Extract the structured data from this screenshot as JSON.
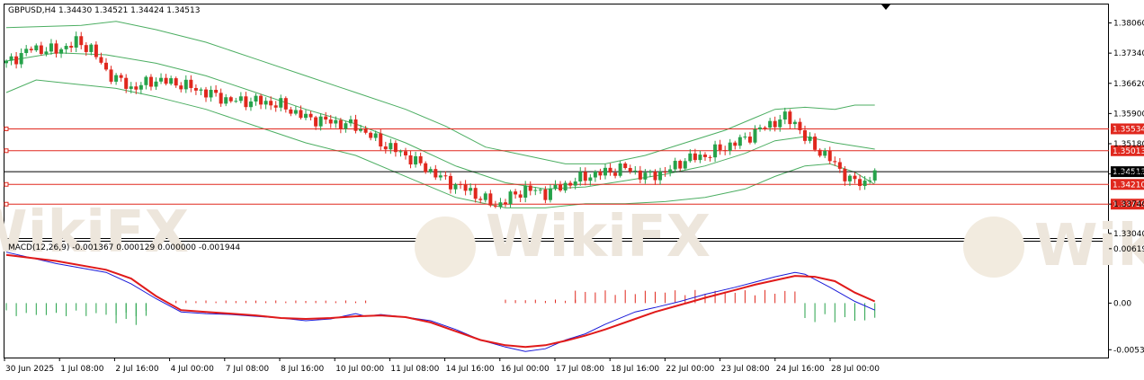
{
  "header": {
    "main_title": "GBPUSD,H4  1.34430 1.34521 1.34424 1.34513",
    "macd_title": "MACD(12,26,9) -0.001367 0.000129 0.000000 -0.001944"
  },
  "watermark": {
    "text": "WikiFX"
  },
  "colors": {
    "bull": "#26a24a",
    "bear": "#e0281e",
    "band": "#4cae62",
    "level": "#e0281e",
    "macd_line": "#1a1ad8",
    "signal_line": "#e01a1a",
    "axis": "#000000"
  },
  "chart_data": {
    "type": "candlestick",
    "symbol": "GBPUSD",
    "timeframe": "H4",
    "ylim": [
      1.3293,
      1.385
    ],
    "price_ticks": [
      "1.38060",
      "1.37340",
      "1.36620",
      "1.35900",
      "1.35180",
      "1.34460",
      "1.33740",
      "1.33040"
    ],
    "x_ticks": [
      "30 Jun 2025",
      "1 Jul 08:00",
      "2 Jul 16:00",
      "4 Jul 00:00",
      "7 Jul 08:00",
      "8 Jul 16:00",
      "10 Jul 00:00",
      "11 Jul 08:00",
      "14 Jul 16:00",
      "16 Jul 00:00",
      "17 Jul 08:00",
      "18 Jul 16:00",
      "22 Jul 00:00",
      "23 Jul 08:00",
      "24 Jul 16:00",
      "28 Jul 00:00"
    ],
    "current_price": "1.34513",
    "levels": [
      "1.35534",
      "1.35013",
      "1.34210",
      "1.33739"
    ],
    "close_path": [
      [
        0,
        1.371
      ],
      [
        5,
        1.3745
      ],
      [
        10,
        1.374
      ],
      [
        14,
        1.376
      ],
      [
        17,
        1.3745
      ],
      [
        20,
        1.369
      ],
      [
        25,
        1.365
      ],
      [
        30,
        1.367
      ],
      [
        35,
        1.366
      ],
      [
        40,
        1.364
      ],
      [
        45,
        1.362
      ],
      [
        50,
        1.362
      ],
      [
        55,
        1.361
      ],
      [
        60,
        1.358
      ],
      [
        65,
        1.357
      ],
      [
        70,
        1.356
      ],
      [
        75,
        1.352
      ],
      [
        80,
        1.349
      ],
      [
        84,
        1.346
      ],
      [
        88,
        1.343
      ],
      [
        92,
        1.341
      ],
      [
        95,
        1.339
      ],
      [
        98,
        1.337
      ],
      [
        101,
        1.339
      ],
      [
        104,
        1.341
      ],
      [
        108,
        1.34
      ],
      [
        112,
        1.342
      ],
      [
        116,
        1.344
      ],
      [
        120,
        1.345
      ],
      [
        124,
        1.346
      ],
      [
        128,
        1.344
      ],
      [
        132,
        1.345
      ],
      [
        136,
        1.348
      ],
      [
        140,
        1.349
      ],
      [
        144,
        1.351
      ],
      [
        148,
        1.353
      ],
      [
        152,
        1.356
      ],
      [
        156,
        1.358
      ],
      [
        158,
        1.357
      ],
      [
        160,
        1.353
      ],
      [
        163,
        1.35
      ],
      [
        166,
        1.347
      ],
      [
        169,
        1.343
      ],
      [
        172,
        1.3425
      ],
      [
        174,
        1.3451
      ]
    ],
    "bands": {
      "upper": [
        [
          0,
          1.3795
        ],
        [
          15,
          1.38
        ],
        [
          22,
          1.381
        ],
        [
          30,
          1.379
        ],
        [
          40,
          1.376
        ],
        [
          50,
          1.372
        ],
        [
          60,
          1.368
        ],
        [
          70,
          1.364
        ],
        [
          80,
          1.36
        ],
        [
          88,
          1.356
        ],
        [
          96,
          1.351
        ],
        [
          104,
          1.349
        ],
        [
          112,
          1.347
        ],
        [
          120,
          1.347
        ],
        [
          128,
          1.349
        ],
        [
          136,
          1.352
        ],
        [
          144,
          1.355
        ],
        [
          150,
          1.358
        ],
        [
          154,
          1.36
        ],
        [
          160,
          1.3605
        ],
        [
          166,
          1.36
        ],
        [
          170,
          1.361
        ],
        [
          174,
          1.361
        ]
      ],
      "middle": [
        [
          0,
          1.3715
        ],
        [
          10,
          1.3735
        ],
        [
          20,
          1.373
        ],
        [
          30,
          1.371
        ],
        [
          40,
          1.368
        ],
        [
          50,
          1.364
        ],
        [
          60,
          1.36
        ],
        [
          70,
          1.3565
        ],
        [
          80,
          1.352
        ],
        [
          90,
          1.3465
        ],
        [
          100,
          1.3425
        ],
        [
          108,
          1.341
        ],
        [
          116,
          1.3415
        ],
        [
          124,
          1.343
        ],
        [
          132,
          1.3445
        ],
        [
          140,
          1.3465
        ],
        [
          148,
          1.3495
        ],
        [
          154,
          1.3525
        ],
        [
          160,
          1.3535
        ],
        [
          166,
          1.352
        ],
        [
          174,
          1.3505
        ]
      ],
      "lower": [
        [
          0,
          1.364
        ],
        [
          6,
          1.367
        ],
        [
          14,
          1.366
        ],
        [
          22,
          1.365
        ],
        [
          30,
          1.363
        ],
        [
          40,
          1.36
        ],
        [
          50,
          1.356
        ],
        [
          60,
          1.352
        ],
        [
          70,
          1.349
        ],
        [
          80,
          1.344
        ],
        [
          90,
          1.339
        ],
        [
          100,
          1.3365
        ],
        [
          108,
          1.3365
        ],
        [
          116,
          1.3375
        ],
        [
          124,
          1.3375
        ],
        [
          132,
          1.338
        ],
        [
          140,
          1.339
        ],
        [
          148,
          1.341
        ],
        [
          154,
          1.344
        ],
        [
          160,
          1.3465
        ],
        [
          165,
          1.347
        ],
        [
          170,
          1.345
        ],
        [
          174,
          1.3421
        ]
      ]
    },
    "macd": {
      "ylim": [
        -0.0062,
        0.007
      ],
      "ticks": [
        "0.006198",
        "0.00",
        "-0.00531"
      ],
      "macd_line": [
        [
          0,
          0.0058
        ],
        [
          10,
          0.0045
        ],
        [
          20,
          0.0035
        ],
        [
          25,
          0.0022
        ],
        [
          30,
          0.0005
        ],
        [
          35,
          -0.001
        ],
        [
          40,
          -0.0012
        ],
        [
          45,
          -0.0013
        ],
        [
          50,
          -0.0015
        ],
        [
          55,
          -0.0017
        ],
        [
          60,
          -0.002
        ],
        [
          65,
          -0.0018
        ],
        [
          70,
          -0.0012
        ],
        [
          72,
          -0.0015
        ],
        [
          75,
          -0.0013
        ],
        [
          80,
          -0.0016
        ],
        [
          85,
          -0.002
        ],
        [
          90,
          -0.003
        ],
        [
          95,
          -0.0042
        ],
        [
          100,
          -0.005
        ],
        [
          104,
          -0.0055
        ],
        [
          108,
          -0.0052
        ],
        [
          112,
          -0.0042
        ],
        [
          116,
          -0.0035
        ],
        [
          120,
          -0.0024
        ],
        [
          126,
          -0.001
        ],
        [
          130,
          -0.0005
        ],
        [
          135,
          0.0002
        ],
        [
          140,
          0.001
        ],
        [
          146,
          0.0018
        ],
        [
          150,
          0.0024
        ],
        [
          154,
          0.003
        ],
        [
          158,
          0.0035
        ],
        [
          160,
          0.0033
        ],
        [
          165,
          0.0018
        ],
        [
          170,
          0.0002
        ],
        [
          174,
          -0.0008
        ]
      ],
      "signal_line": [
        [
          0,
          0.0055
        ],
        [
          10,
          0.0048
        ],
        [
          20,
          0.0038
        ],
        [
          25,
          0.0028
        ],
        [
          30,
          0.0008
        ],
        [
          35,
          -0.0008
        ],
        [
          40,
          -0.001
        ],
        [
          45,
          -0.0012
        ],
        [
          50,
          -0.0014
        ],
        [
          55,
          -0.0017
        ],
        [
          60,
          -0.0018
        ],
        [
          65,
          -0.0017
        ],
        [
          70,
          -0.0015
        ],
        [
          75,
          -0.0014
        ],
        [
          80,
          -0.0016
        ],
        [
          85,
          -0.0022
        ],
        [
          90,
          -0.0032
        ],
        [
          95,
          -0.0042
        ],
        [
          100,
          -0.0048
        ],
        [
          104,
          -0.005
        ],
        [
          108,
          -0.0048
        ],
        [
          112,
          -0.0043
        ],
        [
          116,
          -0.0037
        ],
        [
          120,
          -0.003
        ],
        [
          126,
          -0.0018
        ],
        [
          130,
          -0.001
        ],
        [
          135,
          -0.0002
        ],
        [
          140,
          0.0006
        ],
        [
          146,
          0.0015
        ],
        [
          150,
          0.0021
        ],
        [
          154,
          0.0026
        ],
        [
          158,
          0.0031
        ],
        [
          162,
          0.003
        ],
        [
          166,
          0.0025
        ],
        [
          170,
          0.0012
        ],
        [
          174,
          0.0002
        ]
      ],
      "histogram_segments": [
        {
          "from": 0,
          "to": 28,
          "value": -0.0015,
          "color": "bull"
        },
        {
          "from": 22,
          "to": 28,
          "value": -0.0025,
          "color": "bull"
        },
        {
          "from": 34,
          "to": 72,
          "value": 0.0003,
          "color": "bear"
        },
        {
          "from": 100,
          "to": 114,
          "value": 0.0004,
          "color": "bear"
        },
        {
          "from": 114,
          "to": 158,
          "value": 0.0015,
          "color": "bear"
        },
        {
          "from": 160,
          "to": 174,
          "value": -0.0022,
          "color": "bull"
        }
      ]
    }
  }
}
